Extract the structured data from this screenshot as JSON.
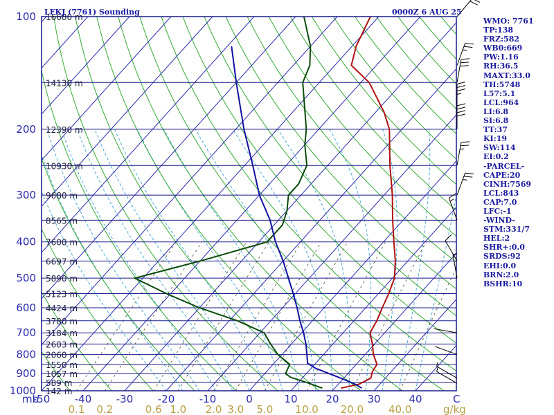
{
  "title": "LFKJ (7761) Sounding",
  "time": "0000Z  6 AUG 25",
  "indices": [
    "WMO: 7761",
    "TP:138",
    "FRZ:582",
    "WB0:669",
    "PW:1.16",
    "RH:36.5",
    "MAXT:33.0",
    "TH:5748",
    "L57:5.1",
    "LCL:964",
    "LI:6.8",
    "SI:6.8",
    "TT:37",
    "KI:19",
    "SW:114",
    "EI:0.2",
    "-PARCEL-",
    "CAPE:20",
    "CINH:7569",
    "LCL:843",
    "CAP:7.0",
    "LFC:-1",
    "-WIND-",
    "STM:331/7",
    "HEL:2",
    "SHR+:0.0",
    "SRDS:92",
    "EHI:0.0",
    "BRN:2.0",
    "BSHR:10"
  ],
  "colors": {
    "temperature": "#b01010",
    "dewpoint": "#0a4a0a",
    "parcel": "#1010a0",
    "isobar": "#1a1a8c",
    "isotherm": "#2a2ab0",
    "dry_adiabat": "#33aa33",
    "moist_adiabat": "#4aa8d8",
    "mixing_ratio": "#6a6a50",
    "wind_barb": "#000000"
  },
  "chart_data": {
    "type": "line",
    "xlabel": "C",
    "ylabel": "mb",
    "xunit_mixing": "g/kg",
    "xlim": [
      -50,
      50
    ],
    "ylim": [
      1000,
      100
    ],
    "log_y": true,
    "pressure_ticks": [
      100,
      200,
      300,
      400,
      500,
      600,
      700,
      800,
      900,
      1000
    ],
    "temperature_ticks": [
      -50,
      -40,
      -30,
      -20,
      -10,
      0,
      10,
      20,
      30,
      40
    ],
    "mixing_ratio_ticks": [
      "0.1",
      "0.2",
      "0.6",
      "1.0",
      "2.0",
      "3.0",
      "5.0",
      "10.0",
      "20.0",
      "40.0"
    ],
    "heights": [
      {
        "p": 100,
        "label": "16680 m"
      },
      {
        "p": 150,
        "label": "14130 m"
      },
      {
        "p": 200,
        "label": "12390 m"
      },
      {
        "p": 250,
        "label": "10930 m"
      },
      {
        "p": 300,
        "label": "9680 m"
      },
      {
        "p": 350,
        "label": "8565 m"
      },
      {
        "p": 400,
        "label": "7600 m"
      },
      {
        "p": 450,
        "label": "6697 m"
      },
      {
        "p": 500,
        "label": "5890 m"
      },
      {
        "p": 550,
        "label": "5123 m"
      },
      {
        "p": 600,
        "label": "4424 m"
      },
      {
        "p": 650,
        "label": "3780 m"
      },
      {
        "p": 700,
        "label": "3184 m"
      },
      {
        "p": 750,
        "label": "2603 m"
      },
      {
        "p": 800,
        "label": "2060 m"
      },
      {
        "p": 850,
        "label": "1550 m"
      },
      {
        "p": 900,
        "label": "1057 m"
      },
      {
        "p": 950,
        "label": "589 m"
      },
      {
        "p": 1000,
        "label": "142 m"
      }
    ],
    "series": [
      {
        "name": "temperature",
        "points": [
          [
            984,
            21.5
          ],
          [
            960,
            25
          ],
          [
            925,
            26.5
          ],
          [
            890,
            25.5
          ],
          [
            850,
            25
          ],
          [
            800,
            22
          ],
          [
            750,
            19.5
          ],
          [
            700,
            16.5
          ],
          [
            650,
            15.5
          ],
          [
            600,
            14
          ],
          [
            550,
            12.5
          ],
          [
            500,
            10.5
          ],
          [
            450,
            7
          ],
          [
            400,
            2.5
          ],
          [
            350,
            -2.5
          ],
          [
            300,
            -8
          ],
          [
            250,
            -15
          ],
          [
            200,
            -23
          ],
          [
            180,
            -28
          ],
          [
            150,
            -38
          ],
          [
            135,
            -46
          ],
          [
            120,
            -49
          ],
          [
            100,
            -52
          ]
        ]
      },
      {
        "name": "dewpoint",
        "points": [
          [
            984,
            17
          ],
          [
            950,
            12
          ],
          [
            920,
            7
          ],
          [
            900,
            5
          ],
          [
            850,
            4
          ],
          [
            800,
            -1
          ],
          [
            750,
            -5
          ],
          [
            700,
            -9
          ],
          [
            650,
            -18
          ],
          [
            600,
            -30
          ],
          [
            550,
            -41
          ],
          [
            500,
            -52
          ],
          [
            450,
            -40
          ],
          [
            400,
            -28
          ],
          [
            360,
            -28
          ],
          [
            330,
            -30
          ],
          [
            300,
            -33
          ],
          [
            280,
            -33
          ],
          [
            250,
            -35
          ],
          [
            220,
            -40
          ],
          [
            200,
            -43
          ],
          [
            150,
            -54
          ],
          [
            135,
            -56
          ],
          [
            120,
            -60
          ],
          [
            100,
            -68
          ]
        ]
      },
      {
        "name": "parcel",
        "points": [
          [
            984,
            26.5
          ],
          [
            960,
            24
          ],
          [
            930,
            20
          ],
          [
            900,
            15.5
          ],
          [
            870,
            11
          ],
          [
            843,
            8
          ],
          [
            800,
            6
          ],
          [
            750,
            3.5
          ],
          [
            700,
            0.5
          ],
          [
            650,
            -3
          ],
          [
            600,
            -6.5
          ],
          [
            550,
            -10.5
          ],
          [
            500,
            -15
          ],
          [
            450,
            -20
          ],
          [
            400,
            -26
          ],
          [
            350,
            -32
          ],
          [
            300,
            -40
          ],
          [
            250,
            -48
          ],
          [
            200,
            -58
          ],
          [
            150,
            -70
          ],
          [
            120,
            -79
          ]
        ]
      }
    ],
    "wind_barbs": [
      {
        "p": 955,
        "dir": 300,
        "speed": 5
      },
      {
        "p": 925,
        "dir": 300,
        "speed": 5
      },
      {
        "p": 800,
        "dir": 290,
        "speed": 0
      },
      {
        "p": 700,
        "dir": 280,
        "speed": 0
      },
      {
        "p": 500,
        "dir": 350,
        "speed": 5
      },
      {
        "p": 450,
        "dir": 330,
        "speed": 10
      },
      {
        "p": 350,
        "dir": 340,
        "speed": 15
      },
      {
        "p": 300,
        "dir": 20,
        "speed": 25
      },
      {
        "p": 250,
        "dir": 10,
        "speed": 25
      },
      {
        "p": 200,
        "dir": 0,
        "speed": 40
      },
      {
        "p": 175,
        "dir": 0,
        "speed": 35
      },
      {
        "p": 150,
        "dir": 10,
        "speed": 30
      },
      {
        "p": 135,
        "dir": 20,
        "speed": 25
      },
      {
        "p": 100,
        "dir": 40,
        "speed": 20
      }
    ]
  }
}
